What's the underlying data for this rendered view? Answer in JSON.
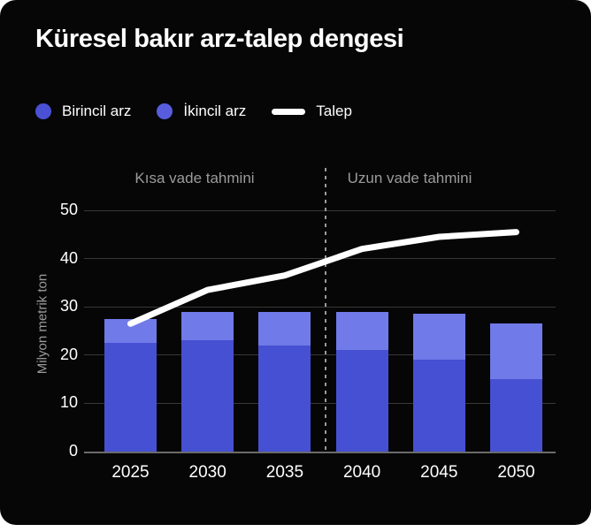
{
  "title": "Küresel bakır arz-talep dengesi",
  "legend": {
    "items": [
      {
        "label": "Birincil arz",
        "swatch": "dot",
        "color": "#4b51d4"
      },
      {
        "label": "İkincil arz",
        "swatch": "dot",
        "color": "#575ddd"
      },
      {
        "label": "Talep",
        "swatch": "line",
        "color": "#ffffff"
      }
    ]
  },
  "sections": {
    "short_term": "Kısa vade tahmini",
    "long_term": "Uzun vade tahmini"
  },
  "y_axis": {
    "title": "Milyon metrik ton",
    "ticks": [
      0,
      10,
      20,
      30,
      40,
      50
    ]
  },
  "x_axis": {
    "categories": [
      "2025",
      "2030",
      "2035",
      "2040",
      "2045",
      "2050"
    ]
  },
  "colors": {
    "card_background": "#060606",
    "page_background": "#ffffff",
    "primary_bar": "#4650d2",
    "secondary_bar": "#707ae8",
    "demand_line": "#ffffff",
    "gridline": "#383838",
    "axis_line": "#6b6b6b",
    "muted_text": "#9b9b9b",
    "divider": "#9a9a9a",
    "text": "#ffffff"
  },
  "chart_data": {
    "type": "bar",
    "subtype": "stacked-bars-with-demand-line",
    "title": "Küresel bakır arz-talep dengesi",
    "ylabel": "Milyon metrik ton",
    "ylim": [
      0,
      50
    ],
    "grid": true,
    "legend_position": "top-left",
    "categories": [
      "2025",
      "2030",
      "2035",
      "2040",
      "2045",
      "2050"
    ],
    "series": [
      {
        "name": "Birincil arz",
        "type": "bar",
        "stack": "arz",
        "values": [
          22.5,
          23,
          22,
          21,
          19,
          15
        ]
      },
      {
        "name": "İkincil arz",
        "type": "bar",
        "stack": "arz",
        "values": [
          5,
          6,
          7,
          8,
          9.5,
          11.5
        ]
      },
      {
        "name": "Talep",
        "type": "line",
        "values": [
          26.5,
          33.5,
          36.5,
          42,
          44.5,
          45.5
        ]
      }
    ],
    "stack_totals": [
      27.5,
      29,
      29,
      29,
      28.5,
      26.5
    ],
    "annotations": [
      {
        "text": "Kısa vade tahmini",
        "span_categories": [
          "2025",
          "2035"
        ]
      },
      {
        "text": "Uzun vade tahmini",
        "span_categories": [
          "2040",
          "2050"
        ]
      }
    ],
    "divider": {
      "style": "dashed",
      "between": [
        "2035",
        "2040"
      ]
    }
  }
}
